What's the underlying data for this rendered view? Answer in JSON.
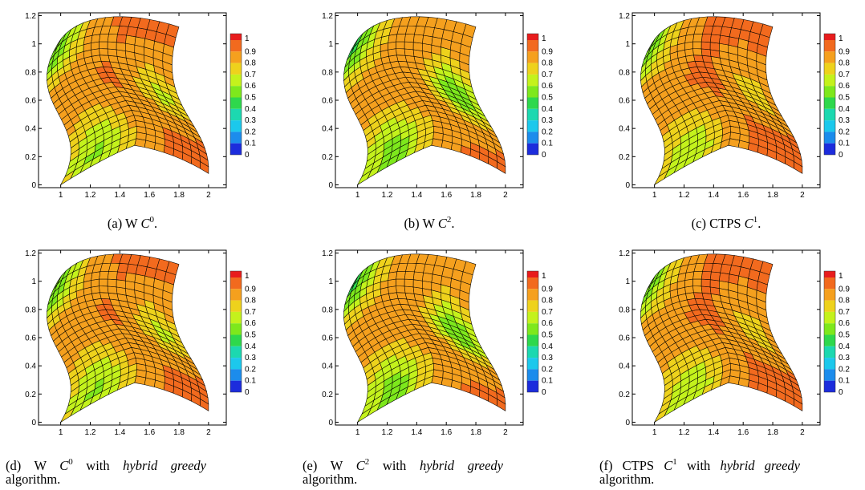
{
  "colorbar": {
    "labels": [
      "1",
      "0.9",
      "0.8",
      "0.7",
      "0.6",
      "0.5",
      "0.4",
      "0.3",
      "0.2",
      "0.1",
      "0"
    ],
    "colors": [
      "#e81c1c",
      "#f26a1e",
      "#f5a01e",
      "#eed21c",
      "#c4f21c",
      "#7ee81c",
      "#2ed84c",
      "#1cd8b0",
      "#1cc8ec",
      "#1c8cec",
      "#1c2cdc"
    ]
  },
  "axes": {
    "x_ticks": [
      "1",
      "1.2",
      "1.4",
      "1.6",
      "1.8",
      "2"
    ],
    "y_ticks": [
      "0",
      "0.2",
      "0.4",
      "0.6",
      "0.8",
      "1",
      "1.2"
    ]
  },
  "panels": [
    {
      "caption_prefix": "(a) W ",
      "caption_math": "C",
      "caption_sup": "0",
      "caption_suffix": ".",
      "caption_italic": "",
      "caption_end": "",
      "variant": "c0"
    },
    {
      "caption_prefix": "(b) W ",
      "caption_math": "C",
      "caption_sup": "2",
      "caption_suffix": ".",
      "caption_italic": "",
      "caption_end": "",
      "variant": "c2"
    },
    {
      "caption_prefix": "(c) CTPS ",
      "caption_math": "C",
      "caption_sup": "1",
      "caption_suffix": ".",
      "caption_italic": "",
      "caption_end": "",
      "variant": "ctps"
    },
    {
      "caption_prefix": "(d) W ",
      "caption_math": "C",
      "caption_sup": "0",
      "caption_suffix": " with ",
      "caption_italic": "hybrid greedy",
      "caption_end": " algorithm.",
      "variant": "c0"
    },
    {
      "caption_prefix": "(e) W ",
      "caption_math": "C",
      "caption_sup": "2",
      "caption_suffix": " with ",
      "caption_italic": "hybrid greedy",
      "caption_end": " algorithm.",
      "variant": "c2"
    },
    {
      "caption_prefix": "(f) CTPS ",
      "caption_math": "C",
      "caption_sup": "1",
      "caption_suffix": " with ",
      "caption_italic": "hybrid greedy",
      "caption_end": " algorithm.",
      "variant": "ctps"
    }
  ]
}
